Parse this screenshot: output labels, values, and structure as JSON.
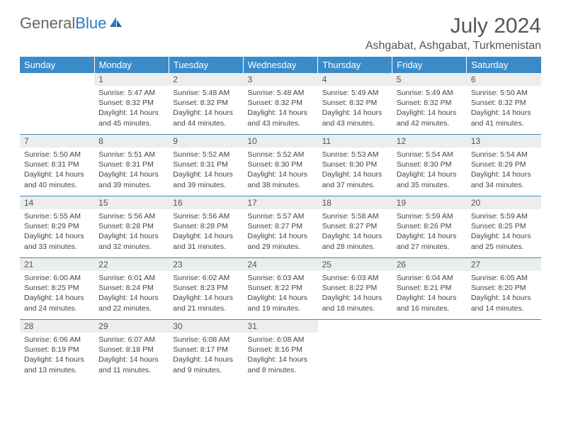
{
  "logo": {
    "text_gray": "General",
    "text_blue": "Blue"
  },
  "title": "July 2024",
  "location": "Ashgabat, Ashgabat, Turkmenistan",
  "colors": {
    "header_bg": "#3b8bc9",
    "header_text": "#ffffff",
    "daynum_bg": "#eceded",
    "border": "#3b8bc9",
    "logo_gray": "#666666",
    "logo_blue": "#2b7bbf"
  },
  "day_headers": [
    "Sunday",
    "Monday",
    "Tuesday",
    "Wednesday",
    "Thursday",
    "Friday",
    "Saturday"
  ],
  "weeks": [
    [
      {
        "n": "",
        "sr": "",
        "ss": "",
        "dl": ""
      },
      {
        "n": "1",
        "sr": "Sunrise: 5:47 AM",
        "ss": "Sunset: 8:32 PM",
        "dl": "Daylight: 14 hours and 45 minutes."
      },
      {
        "n": "2",
        "sr": "Sunrise: 5:48 AM",
        "ss": "Sunset: 8:32 PM",
        "dl": "Daylight: 14 hours and 44 minutes."
      },
      {
        "n": "3",
        "sr": "Sunrise: 5:48 AM",
        "ss": "Sunset: 8:32 PM",
        "dl": "Daylight: 14 hours and 43 minutes."
      },
      {
        "n": "4",
        "sr": "Sunrise: 5:49 AM",
        "ss": "Sunset: 8:32 PM",
        "dl": "Daylight: 14 hours and 43 minutes."
      },
      {
        "n": "5",
        "sr": "Sunrise: 5:49 AM",
        "ss": "Sunset: 8:32 PM",
        "dl": "Daylight: 14 hours and 42 minutes."
      },
      {
        "n": "6",
        "sr": "Sunrise: 5:50 AM",
        "ss": "Sunset: 8:32 PM",
        "dl": "Daylight: 14 hours and 41 minutes."
      }
    ],
    [
      {
        "n": "7",
        "sr": "Sunrise: 5:50 AM",
        "ss": "Sunset: 8:31 PM",
        "dl": "Daylight: 14 hours and 40 minutes."
      },
      {
        "n": "8",
        "sr": "Sunrise: 5:51 AM",
        "ss": "Sunset: 8:31 PM",
        "dl": "Daylight: 14 hours and 39 minutes."
      },
      {
        "n": "9",
        "sr": "Sunrise: 5:52 AM",
        "ss": "Sunset: 8:31 PM",
        "dl": "Daylight: 14 hours and 39 minutes."
      },
      {
        "n": "10",
        "sr": "Sunrise: 5:52 AM",
        "ss": "Sunset: 8:30 PM",
        "dl": "Daylight: 14 hours and 38 minutes."
      },
      {
        "n": "11",
        "sr": "Sunrise: 5:53 AM",
        "ss": "Sunset: 8:30 PM",
        "dl": "Daylight: 14 hours and 37 minutes."
      },
      {
        "n": "12",
        "sr": "Sunrise: 5:54 AM",
        "ss": "Sunset: 8:30 PM",
        "dl": "Daylight: 14 hours and 35 minutes."
      },
      {
        "n": "13",
        "sr": "Sunrise: 5:54 AM",
        "ss": "Sunset: 8:29 PM",
        "dl": "Daylight: 14 hours and 34 minutes."
      }
    ],
    [
      {
        "n": "14",
        "sr": "Sunrise: 5:55 AM",
        "ss": "Sunset: 8:29 PM",
        "dl": "Daylight: 14 hours and 33 minutes."
      },
      {
        "n": "15",
        "sr": "Sunrise: 5:56 AM",
        "ss": "Sunset: 8:28 PM",
        "dl": "Daylight: 14 hours and 32 minutes."
      },
      {
        "n": "16",
        "sr": "Sunrise: 5:56 AM",
        "ss": "Sunset: 8:28 PM",
        "dl": "Daylight: 14 hours and 31 minutes."
      },
      {
        "n": "17",
        "sr": "Sunrise: 5:57 AM",
        "ss": "Sunset: 8:27 PM",
        "dl": "Daylight: 14 hours and 29 minutes."
      },
      {
        "n": "18",
        "sr": "Sunrise: 5:58 AM",
        "ss": "Sunset: 8:27 PM",
        "dl": "Daylight: 14 hours and 28 minutes."
      },
      {
        "n": "19",
        "sr": "Sunrise: 5:59 AM",
        "ss": "Sunset: 8:26 PM",
        "dl": "Daylight: 14 hours and 27 minutes."
      },
      {
        "n": "20",
        "sr": "Sunrise: 5:59 AM",
        "ss": "Sunset: 8:25 PM",
        "dl": "Daylight: 14 hours and 25 minutes."
      }
    ],
    [
      {
        "n": "21",
        "sr": "Sunrise: 6:00 AM",
        "ss": "Sunset: 8:25 PM",
        "dl": "Daylight: 14 hours and 24 minutes."
      },
      {
        "n": "22",
        "sr": "Sunrise: 6:01 AM",
        "ss": "Sunset: 8:24 PM",
        "dl": "Daylight: 14 hours and 22 minutes."
      },
      {
        "n": "23",
        "sr": "Sunrise: 6:02 AM",
        "ss": "Sunset: 8:23 PM",
        "dl": "Daylight: 14 hours and 21 minutes."
      },
      {
        "n": "24",
        "sr": "Sunrise: 6:03 AM",
        "ss": "Sunset: 8:22 PM",
        "dl": "Daylight: 14 hours and 19 minutes."
      },
      {
        "n": "25",
        "sr": "Sunrise: 6:03 AM",
        "ss": "Sunset: 8:22 PM",
        "dl": "Daylight: 14 hours and 18 minutes."
      },
      {
        "n": "26",
        "sr": "Sunrise: 6:04 AM",
        "ss": "Sunset: 8:21 PM",
        "dl": "Daylight: 14 hours and 16 minutes."
      },
      {
        "n": "27",
        "sr": "Sunrise: 6:05 AM",
        "ss": "Sunset: 8:20 PM",
        "dl": "Daylight: 14 hours and 14 minutes."
      }
    ],
    [
      {
        "n": "28",
        "sr": "Sunrise: 6:06 AM",
        "ss": "Sunset: 8:19 PM",
        "dl": "Daylight: 14 hours and 13 minutes."
      },
      {
        "n": "29",
        "sr": "Sunrise: 6:07 AM",
        "ss": "Sunset: 8:18 PM",
        "dl": "Daylight: 14 hours and 11 minutes."
      },
      {
        "n": "30",
        "sr": "Sunrise: 6:08 AM",
        "ss": "Sunset: 8:17 PM",
        "dl": "Daylight: 14 hours and 9 minutes."
      },
      {
        "n": "31",
        "sr": "Sunrise: 6:08 AM",
        "ss": "Sunset: 8:16 PM",
        "dl": "Daylight: 14 hours and 8 minutes."
      },
      {
        "n": "",
        "sr": "",
        "ss": "",
        "dl": ""
      },
      {
        "n": "",
        "sr": "",
        "ss": "",
        "dl": ""
      },
      {
        "n": "",
        "sr": "",
        "ss": "",
        "dl": ""
      }
    ]
  ]
}
